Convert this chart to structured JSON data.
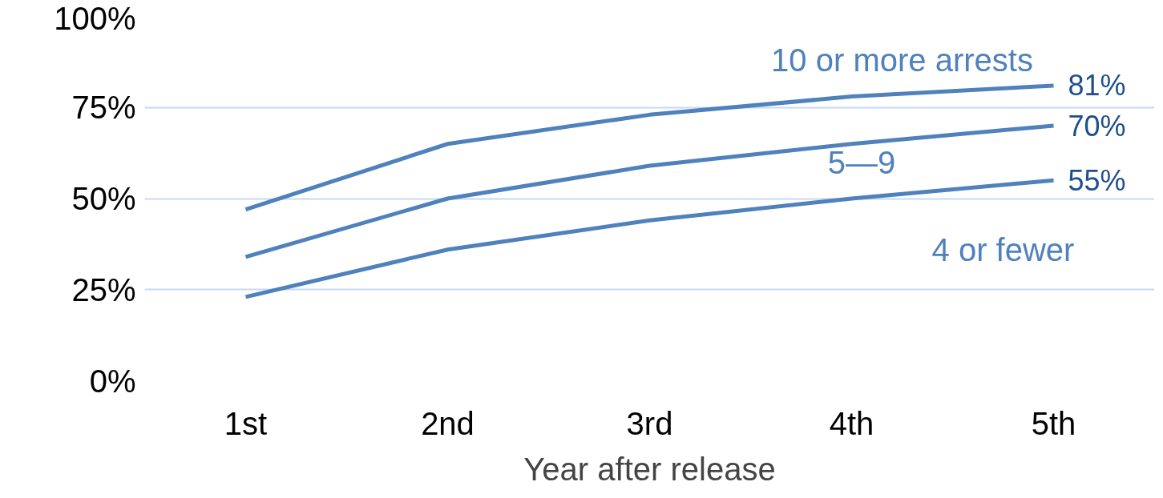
{
  "chart_data": {
    "type": "line",
    "xlabel": "Year after release",
    "categories": [
      "1st",
      "2nd",
      "3rd",
      "4th",
      "5th"
    ],
    "series": [
      {
        "name": "10 or more arrests",
        "color": "#4f81bd",
        "values": [
          47,
          65,
          73,
          78,
          81
        ],
        "value_labels": [
          null,
          null,
          null,
          null,
          "81%"
        ]
      },
      {
        "name": "5—9",
        "color": "#4f81bd",
        "values": [
          34,
          50,
          59,
          65,
          70
        ],
        "value_labels": [
          null,
          null,
          null,
          null,
          "70%"
        ]
      },
      {
        "name": "4 or fewer",
        "color": "#4f81bd",
        "values": [
          23,
          36,
          44,
          50,
          55
        ],
        "value_labels": [
          null,
          null,
          null,
          null,
          "55%"
        ]
      }
    ],
    "ylim": [
      0,
      100
    ],
    "yticks": [
      {
        "value": 0,
        "label": "0%"
      },
      {
        "value": 25,
        "label": "25%"
      },
      {
        "value": 50,
        "label": "50%"
      },
      {
        "value": 75,
        "label": "75%"
      },
      {
        "value": 100,
        "label": "100%"
      }
    ],
    "grid": "y",
    "marker": "none",
    "line_style": "solid"
  }
}
